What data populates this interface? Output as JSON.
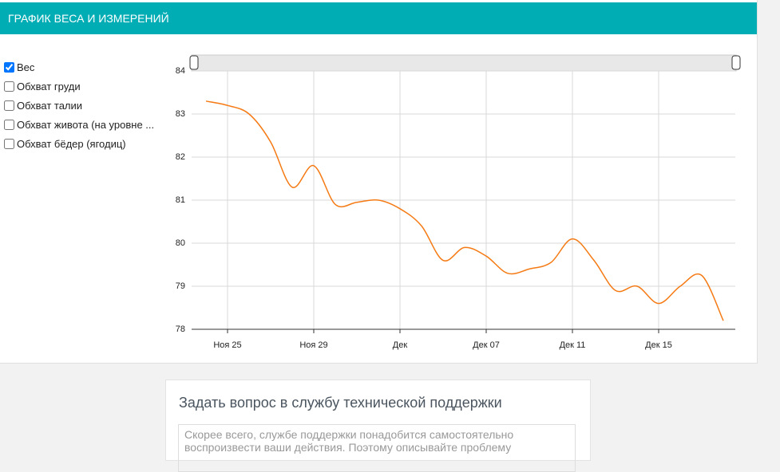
{
  "header": {
    "title": "ГРАФИК ВЕСА И ИЗМЕРЕНИЙ"
  },
  "filters": [
    {
      "label": "Вес",
      "checked": true
    },
    {
      "label": "Обхват груди",
      "checked": false
    },
    {
      "label": "Обхват талии",
      "checked": false
    },
    {
      "label": "Обхват живота (на уровне ...",
      "checked": false
    },
    {
      "label": "Обхват бёдер (ягодиц)",
      "checked": false
    }
  ],
  "chart_data": {
    "type": "line",
    "categories": [
      null,
      "Ноя 25",
      null,
      null,
      null,
      "Ноя 29",
      null,
      null,
      null,
      "Дек",
      null,
      null,
      null,
      "Дек 07",
      null,
      null,
      null,
      "Дек 11",
      null,
      null,
      null,
      "Дек 15",
      null,
      null,
      null
    ],
    "series": [
      {
        "name": "Вес",
        "color": "#f57a14",
        "values": [
          83.3,
          83.2,
          83.0,
          82.35,
          81.3,
          81.8,
          80.9,
          80.95,
          81.0,
          80.8,
          80.4,
          79.6,
          79.9,
          79.7,
          79.3,
          79.4,
          79.55,
          80.1,
          79.6,
          78.9,
          79.0,
          78.6,
          79.0,
          79.25,
          78.2
        ]
      }
    ],
    "ylim": [
      78,
      84
    ],
    "yticks": [
      78,
      79,
      80,
      81,
      82,
      83,
      84
    ],
    "grid": true
  },
  "support": {
    "title": "Задать вопрос в службу технической поддержки",
    "placeholder": "Скорее всего, службе поддержки понадобится самостоятельно воспроизвести ваши действия. Поэтому описывайте проблему"
  }
}
